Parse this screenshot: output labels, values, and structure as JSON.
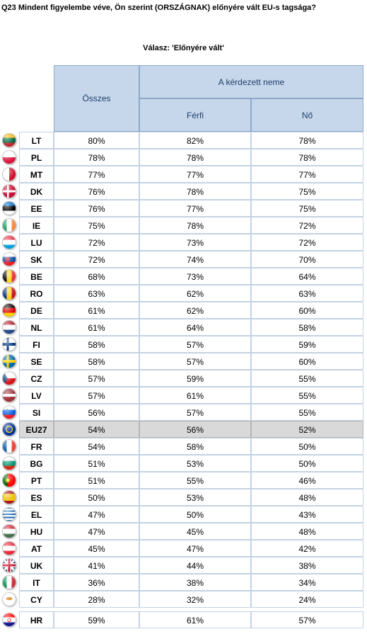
{
  "title": "Q23 Mindent figyelembe véve, Ön szerint (ORSZÁGNAK) előnyére vált EU-s tagsága?",
  "subtitle": "Válasz: 'Előnyére vált'",
  "headers": {
    "total": "Összes",
    "gender_group": "A kérdezett neme",
    "male": "Férfi",
    "female": "Nő"
  },
  "rows": [
    {
      "code": "LT",
      "flag": "lt-flag-icon",
      "total": "80%",
      "male": "82%",
      "female": "78%"
    },
    {
      "code": "PL",
      "flag": "pl-flag-icon",
      "total": "78%",
      "male": "78%",
      "female": "78%"
    },
    {
      "code": "MT",
      "flag": "mt-flag-icon",
      "total": "77%",
      "male": "77%",
      "female": "77%"
    },
    {
      "code": "DK",
      "flag": "dk-flag-icon",
      "total": "76%",
      "male": "78%",
      "female": "75%"
    },
    {
      "code": "EE",
      "flag": "ee-flag-icon",
      "total": "76%",
      "male": "77%",
      "female": "75%"
    },
    {
      "code": "IE",
      "flag": "ie-flag-icon",
      "total": "75%",
      "male": "78%",
      "female": "72%"
    },
    {
      "code": "LU",
      "flag": "lu-flag-icon",
      "total": "72%",
      "male": "73%",
      "female": "72%"
    },
    {
      "code": "SK",
      "flag": "sk-flag-icon",
      "total": "72%",
      "male": "74%",
      "female": "70%"
    },
    {
      "code": "BE",
      "flag": "be-flag-icon",
      "total": "68%",
      "male": "73%",
      "female": "64%"
    },
    {
      "code": "RO",
      "flag": "ro-flag-icon",
      "total": "63%",
      "male": "62%",
      "female": "63%"
    },
    {
      "code": "DE",
      "flag": "de-flag-icon",
      "total": "61%",
      "male": "62%",
      "female": "60%"
    },
    {
      "code": "NL",
      "flag": "nl-flag-icon",
      "total": "61%",
      "male": "64%",
      "female": "58%"
    },
    {
      "code": "FI",
      "flag": "fi-flag-icon",
      "total": "58%",
      "male": "57%",
      "female": "59%"
    },
    {
      "code": "SE",
      "flag": "se-flag-icon",
      "total": "58%",
      "male": "57%",
      "female": "60%"
    },
    {
      "code": "CZ",
      "flag": "cz-flag-icon",
      "total": "57%",
      "male": "59%",
      "female": "55%"
    },
    {
      "code": "LV",
      "flag": "lv-flag-icon",
      "total": "57%",
      "male": "61%",
      "female": "55%"
    },
    {
      "code": "SI",
      "flag": "si-flag-icon",
      "total": "56%",
      "male": "57%",
      "female": "55%"
    },
    {
      "code": "EU27",
      "flag": "eu-flag-icon",
      "total": "54%",
      "male": "56%",
      "female": "52%",
      "highlight": true
    },
    {
      "code": "FR",
      "flag": "fr-flag-icon",
      "total": "54%",
      "male": "58%",
      "female": "50%"
    },
    {
      "code": "BG",
      "flag": "bg-flag-icon",
      "total": "51%",
      "male": "53%",
      "female": "50%"
    },
    {
      "code": "PT",
      "flag": "pt-flag-icon",
      "total": "51%",
      "male": "55%",
      "female": "46%"
    },
    {
      "code": "ES",
      "flag": "es-flag-icon",
      "total": "50%",
      "male": "53%",
      "female": "48%"
    },
    {
      "code": "EL",
      "flag": "gr-flag-icon",
      "total": "47%",
      "male": "50%",
      "female": "43%"
    },
    {
      "code": "HU",
      "flag": "hu-flag-icon",
      "total": "47%",
      "male": "45%",
      "female": "48%"
    },
    {
      "code": "AT",
      "flag": "at-flag-icon",
      "total": "45%",
      "male": "47%",
      "female": "42%"
    },
    {
      "code": "UK",
      "flag": "uk-flag-icon",
      "total": "41%",
      "male": "44%",
      "female": "38%"
    },
    {
      "code": "IT",
      "flag": "it-flag-icon",
      "total": "36%",
      "male": "38%",
      "female": "34%"
    },
    {
      "code": "CY",
      "flag": "cy-flag-icon",
      "total": "28%",
      "male": "32%",
      "female": "24%"
    },
    {
      "code": "HR",
      "flag": "hr-flag-icon",
      "total": "59%",
      "male": "61%",
      "female": "57%",
      "separate": true
    }
  ]
}
